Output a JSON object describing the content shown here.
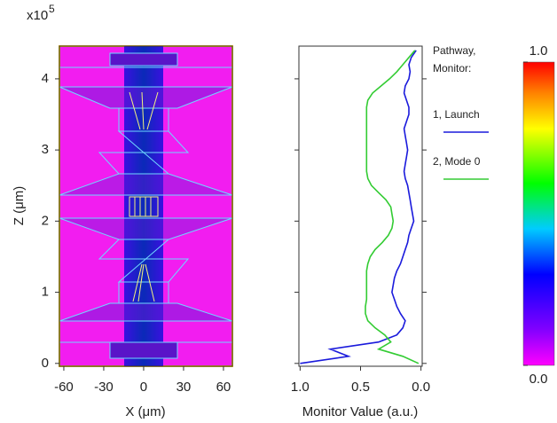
{
  "chart_data": [
    {
      "type": "field",
      "xlabel": "X (μm)",
      "ylabel": "Z (μm)",
      "scale_label": {
        "base": "x10",
        "exponent": "5"
      },
      "xlim": [
        -63.3,
        66.7
      ],
      "xticks": [
        -60,
        -30,
        0,
        30,
        60
      ],
      "ylim": [
        -0.04,
        4.46
      ],
      "yticks": [
        0,
        1,
        2,
        3,
        4
      ]
    },
    {
      "type": "line",
      "xlabel": "Monitor Value (a.u.)",
      "xlim": [
        1.01,
        -0.01
      ],
      "xticks": [
        {
          "value": 1,
          "label": "1.0"
        },
        {
          "value": 0.5,
          "label": "0.5"
        },
        {
          "value": 0,
          "label": "0.0"
        }
      ],
      "ylim": [
        -0.04,
        4.46
      ],
      "yticks": [
        0,
        1,
        2,
        3,
        4
      ],
      "legend_title": [
        "Pathway,",
        "Monitor:"
      ],
      "z": [
        0,
        0.1,
        0.2,
        0.3,
        0.4,
        0.5,
        0.6,
        0.7,
        0.8,
        0.9,
        1.0,
        1.1,
        1.2,
        1.3,
        1.4,
        1.5,
        1.6,
        1.7,
        1.8,
        1.9,
        2.0,
        2.1,
        2.2,
        2.3,
        2.4,
        2.5,
        2.6,
        2.7,
        2.8,
        2.9,
        3.0,
        3.1,
        3.2,
        3.3,
        3.4,
        3.5,
        3.6,
        3.7,
        3.8,
        3.9,
        4.0,
        4.1,
        4.2,
        4.3,
        4.4
      ],
      "series": [
        {
          "name": "1, Launch",
          "color": "#1a1adc",
          "values": [
            1.0,
            0.6,
            0.75,
            0.35,
            0.2,
            0.15,
            0.13,
            0.17,
            0.2,
            0.22,
            0.24,
            0.23,
            0.22,
            0.2,
            0.17,
            0.15,
            0.13,
            0.11,
            0.1,
            0.08,
            0.06,
            0.07,
            0.08,
            0.09,
            0.1,
            0.11,
            0.13,
            0.14,
            0.13,
            0.12,
            0.11,
            0.12,
            0.13,
            0.14,
            0.12,
            0.1,
            0.1,
            0.12,
            0.14,
            0.13,
            0.1,
            0.09,
            0.1,
            0.08,
            0.04
          ]
        },
        {
          "name": "2, Mode 0",
          "color": "#33cc33",
          "values": [
            0.02,
            0.15,
            0.35,
            0.25,
            0.3,
            0.38,
            0.44,
            0.46,
            0.46,
            0.45,
            0.45,
            0.45,
            0.45,
            0.45,
            0.44,
            0.42,
            0.38,
            0.32,
            0.27,
            0.24,
            0.23,
            0.24,
            0.25,
            0.29,
            0.35,
            0.41,
            0.44,
            0.45,
            0.45,
            0.45,
            0.45,
            0.45,
            0.45,
            0.45,
            0.45,
            0.45,
            0.45,
            0.44,
            0.4,
            0.33,
            0.26,
            0.2,
            0.15,
            0.1,
            0.05
          ]
        }
      ]
    },
    {
      "type": "colorbar",
      "lim": [
        0,
        1
      ],
      "ticks": [
        {
          "value": 0,
          "label": "0.0"
        },
        {
          "value": 1,
          "label": "1.0"
        }
      ]
    }
  ]
}
